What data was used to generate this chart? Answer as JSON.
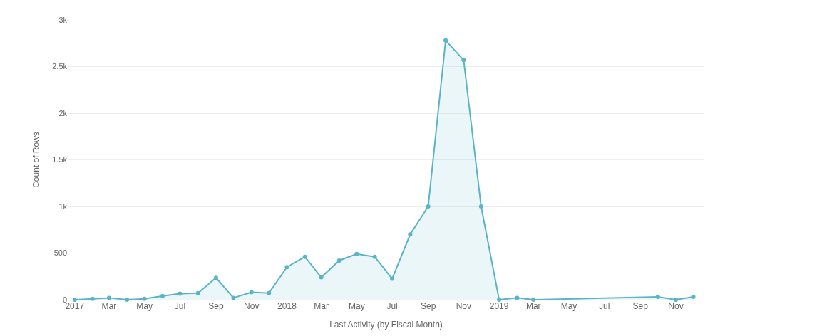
{
  "chart_data": {
    "type": "area",
    "xlabel": "Last Activity (by Fiscal Month)",
    "ylabel": "Count of Rows",
    "x": [
      "2017-01",
      "2017-02",
      "2017-03",
      "2017-04",
      "2017-05",
      "2017-06",
      "2017-07",
      "2017-08",
      "2017-09",
      "2017-10",
      "2017-11",
      "2017-12",
      "2018-01",
      "2018-02",
      "2018-03",
      "2018-04",
      "2018-05",
      "2018-06",
      "2018-07",
      "2018-08",
      "2018-09",
      "2018-10",
      "2018-11",
      "2018-12",
      "2019-01",
      "2019-02",
      "2019-03",
      "2019-10",
      "2019-11",
      "2019-12"
    ],
    "series": [
      {
        "color": "#5ab4c8",
        "values": [
          0,
          10,
          20,
          0,
          10,
          40,
          65,
          70,
          235,
          20,
          80,
          70,
          350,
          460,
          240,
          420,
          490,
          460,
          225,
          700,
          1000,
          2780,
          2570,
          1000,
          0,
          20,
          0,
          30,
          0,
          30
        ]
      }
    ],
    "xlim": [
      "2016-12-20",
      "2019-12-20"
    ],
    "xticks": [
      {
        "value": "2017-01",
        "label": "2017"
      },
      {
        "value": "2017-03",
        "label": "Mar"
      },
      {
        "value": "2017-05",
        "label": "May"
      },
      {
        "value": "2017-07",
        "label": "Jul"
      },
      {
        "value": "2017-09",
        "label": "Sep"
      },
      {
        "value": "2017-11",
        "label": "Nov"
      },
      {
        "value": "2018-01",
        "label": "2018"
      },
      {
        "value": "2018-03",
        "label": "Mar"
      },
      {
        "value": "2018-05",
        "label": "May"
      },
      {
        "value": "2018-07",
        "label": "Jul"
      },
      {
        "value": "2018-09",
        "label": "Sep"
      },
      {
        "value": "2018-11",
        "label": "Nov"
      },
      {
        "value": "2019-01",
        "label": "2019"
      },
      {
        "value": "2019-03",
        "label": "Mar"
      },
      {
        "value": "2019-05",
        "label": "May"
      },
      {
        "value": "2019-07",
        "label": "Jul"
      },
      {
        "value": "2019-09",
        "label": "Sep"
      },
      {
        "value": "2019-11",
        "label": "Nov"
      }
    ],
    "ylim": [
      0,
      3000
    ],
    "yticks": [
      0,
      500,
      {
        "value": 1000,
        "label": "1k"
      },
      {
        "value": 1500,
        "label": "1.5k"
      },
      {
        "value": 2000,
        "label": "2k"
      },
      {
        "value": 2500,
        "label": "2.5k"
      },
      {
        "value": 3000,
        "label": "3k"
      }
    ],
    "grid": "y",
    "marker": "circle",
    "line_style": "solid"
  }
}
